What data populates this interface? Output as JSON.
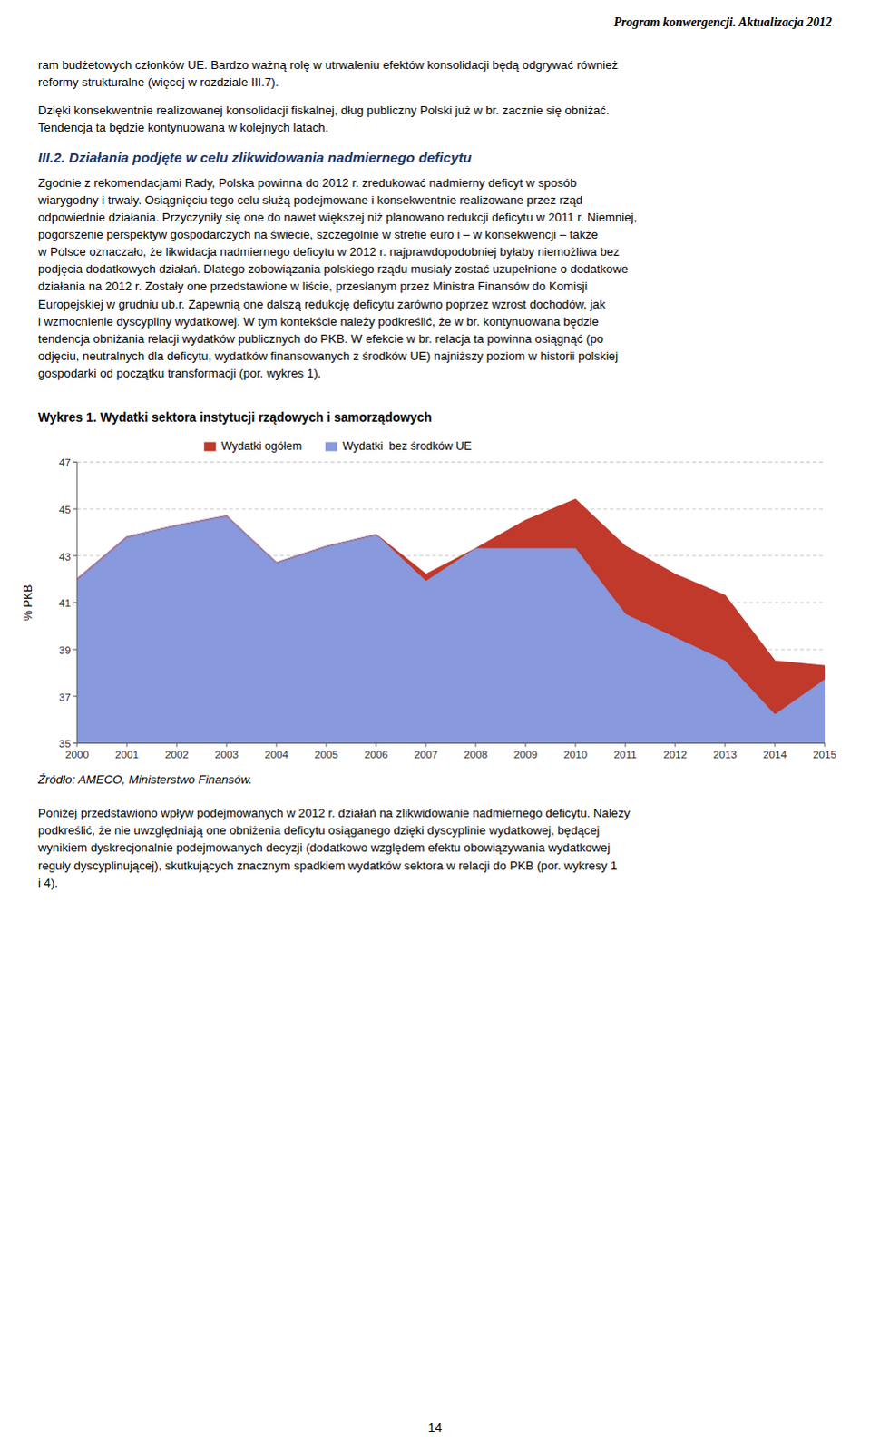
{
  "header": "Program konwergencji. Aktualizacja 2012",
  "para1_lines": [
    "ram budżetowych członków UE. Bardzo ważną rolę w utrwaleniu efektów konsolidacji będą odgrywać również",
    "reformy strukturalne (więcej w rozdziale III.7)."
  ],
  "para2_lines": [
    "Dzięki konsekwentnie realizowanej konsolidacji fiskalnej, dług publiczny Polski już w br. zacznie się obniżać.",
    "Tendencja ta będzie kontynuowana w kolejnych latach."
  ],
  "section_title": "III.2. Działania podjęte w celu zlikwidowania nadmiernego deficytu",
  "body_lines": [
    "Zgodnie z rekomendacjami Rady, Polska powinna do 2012 r. zredukować nadmierny deficyt w sposób",
    "wiarygodny i trwały. Osiągnięciu tego celu służą podejmowane i konsekwentnie realizowane przez rząd",
    "odpowiednie działania. Przyczyniły się one do nawet większej niż planowano redukcji deficytu w 2011 r. Niemniej,",
    "pogorszenie perspektyw gospodarczych na świecie, szczególnie w strefie euro i – w konsekwencji – także",
    "w Polsce oznaczało, że likwidacja nadmiernego deficytu w 2012 r. najprawdopodobniej byłaby niemożliwa bez",
    "podjęcia dodatkowych działań. Dlatego zobowiązania polskiego rządu musiały zostać uzupełnione o dodatkowe",
    "działania na 2012 r. Zostały one przedstawione w liście, przesłanym przez Ministra Finansów do Komisji",
    "Europejskiej w grudniu ub.r. Zapewnią one dalszą redukcję deficytu zarówno poprzez wzrost dochodów, jak",
    "i wzmocnienie dyscypliny wydatkowej. W tym kontekście należy podkreślić, że w br. kontynuowana będzie",
    "tendencja obniżania relacji wydatków publicznych do PKB. W efekcie w br. relacja ta powinna osiągnąć (po",
    "odjęciu, neutralnych dla deficytu, wydatków finansowanych z środków UE) najniższy poziom w historii polskiej",
    "gospodarki od początku transformacji (por. wykres 1)."
  ],
  "source": "Źródło: AMECO, Ministerstwo Finansów.",
  "footer_lines": [
    "Poniżej przedstawiono wpływ podejmowanych w 2012 r. działań na zlikwidowanie nadmiernego deficytu. Należy",
    "podkreślić, że nie uwzględniają one obniżenia deficytu osiąganego dzięki dyscyplinie wydatkowej, będącej",
    "wynikiem dyskrecjonalnie podejmowanych decyzji (dodatkowo względem efektu obowiązywania wydatkowej",
    "reguły dyscyplinującej), skutkujących znacznym spadkiem wydatków sektora w relacji do PKB (por. wykresy 1",
    "i 4)."
  ],
  "page_number": "14",
  "chart_data": {
    "type": "area",
    "title": "Wykres 1. Wydatki sektora instytucji rządowych i samorządowych",
    "x": [
      2000,
      2001,
      2002,
      2003,
      2004,
      2005,
      2006,
      2007,
      2008,
      2009,
      2010,
      2011,
      2012,
      2013,
      2014,
      2015
    ],
    "xlim": [
      2000,
      2015
    ],
    "xticks": [
      2000,
      2001,
      2002,
      2003,
      2004,
      2005,
      2006,
      2007,
      2008,
      2009,
      2010,
      2011,
      2012,
      2013,
      2014,
      2015
    ],
    "ylim": [
      35,
      47
    ],
    "yticks": [
      35,
      37,
      39,
      41,
      43,
      45,
      47
    ],
    "y_label": "% PKB",
    "grid": true,
    "legend": "upper left",
    "series": [
      {
        "name": "Wydatki ogółem",
        "color": "#c0392b",
        "values": [
          42.0,
          43.8,
          44.3,
          44.7,
          42.7,
          43.4,
          43.9,
          42.2,
          43.3,
          44.5,
          45.4,
          43.4,
          42.2,
          41.3,
          38.5,
          38.3
        ]
      },
      {
        "name": "Wydatki  bez środków UE",
        "color": "#8899dd",
        "values": [
          42.0,
          43.8,
          44.3,
          44.7,
          42.7,
          43.4,
          43.9,
          41.9,
          43.3,
          43.3,
          43.3,
          40.5,
          39.5,
          38.5,
          36.2,
          37.7
        ]
      }
    ]
  }
}
